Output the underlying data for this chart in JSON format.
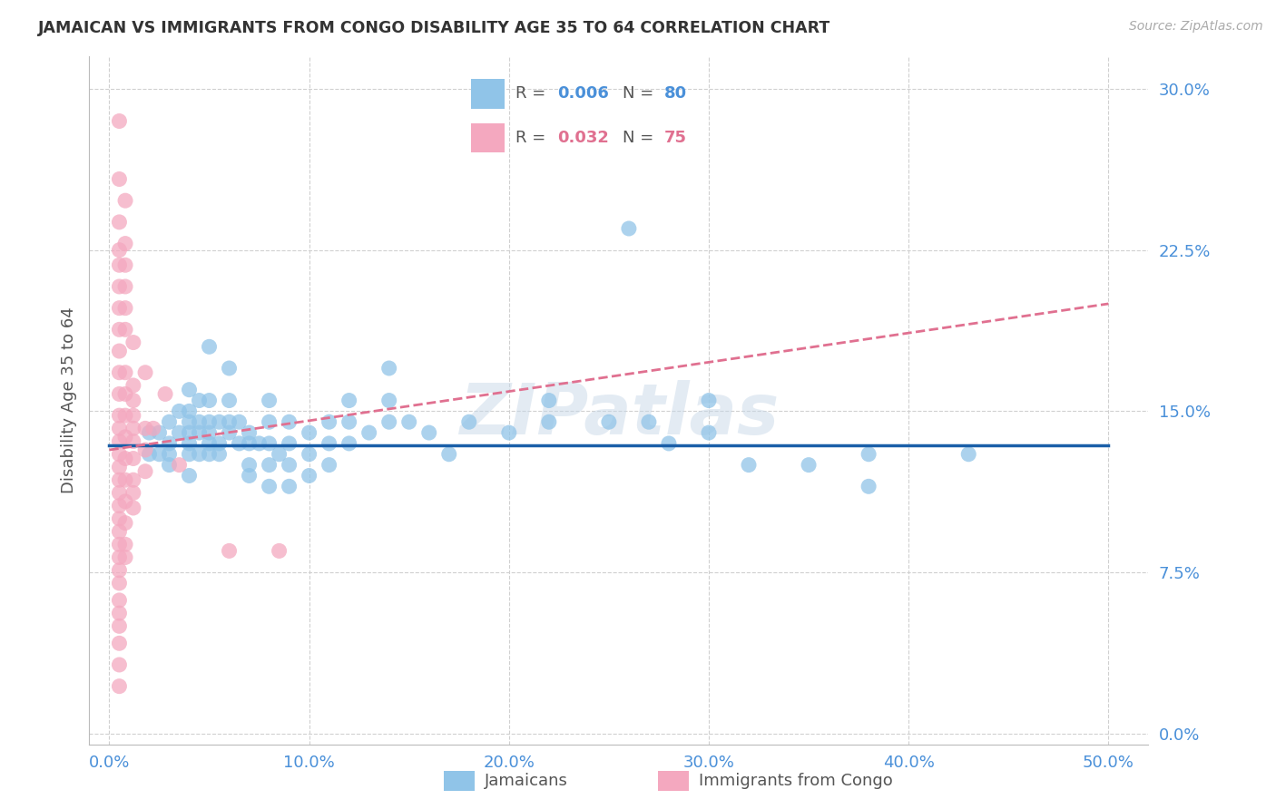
{
  "title": "JAMAICAN VS IMMIGRANTS FROM CONGO DISABILITY AGE 35 TO 64 CORRELATION CHART",
  "source": "Source: ZipAtlas.com",
  "xlabel_ticks": [
    "0.0%",
    "10.0%",
    "20.0%",
    "30.0%",
    "40.0%",
    "50.0%"
  ],
  "xlabel_vals": [
    0.0,
    0.1,
    0.2,
    0.3,
    0.4,
    0.5
  ],
  "ylabel_ticks": [
    "0.0%",
    "7.5%",
    "15.0%",
    "22.5%",
    "30.0%"
  ],
  "ylabel_vals": [
    0.0,
    0.075,
    0.15,
    0.225,
    0.3
  ],
  "xlim": [
    -0.01,
    0.52
  ],
  "ylim": [
    -0.005,
    0.315
  ],
  "ylabel": "Disability Age 35 to 64",
  "legend_blue_R": "0.006",
  "legend_blue_N": "80",
  "legend_pink_R": "0.032",
  "legend_pink_N": "75",
  "legend_label_blue": "Jamaicans",
  "legend_label_pink": "Immigrants from Congo",
  "watermark": "ZIPatlas",
  "blue_color": "#90c4e8",
  "pink_color": "#f4a8bf",
  "blue_line_color": "#1a5fa8",
  "pink_line_color": "#e07090",
  "tick_color": "#4a90d9",
  "blue_dots": [
    [
      0.02,
      0.14
    ],
    [
      0.02,
      0.13
    ],
    [
      0.025,
      0.14
    ],
    [
      0.025,
      0.13
    ],
    [
      0.03,
      0.145
    ],
    [
      0.03,
      0.135
    ],
    [
      0.03,
      0.13
    ],
    [
      0.03,
      0.125
    ],
    [
      0.035,
      0.15
    ],
    [
      0.035,
      0.14
    ],
    [
      0.04,
      0.16
    ],
    [
      0.04,
      0.15
    ],
    [
      0.04,
      0.145
    ],
    [
      0.04,
      0.14
    ],
    [
      0.04,
      0.135
    ],
    [
      0.04,
      0.13
    ],
    [
      0.04,
      0.12
    ],
    [
      0.045,
      0.155
    ],
    [
      0.045,
      0.145
    ],
    [
      0.045,
      0.14
    ],
    [
      0.045,
      0.13
    ],
    [
      0.05,
      0.18
    ],
    [
      0.05,
      0.155
    ],
    [
      0.05,
      0.145
    ],
    [
      0.05,
      0.14
    ],
    [
      0.05,
      0.135
    ],
    [
      0.05,
      0.13
    ],
    [
      0.055,
      0.145
    ],
    [
      0.055,
      0.135
    ],
    [
      0.055,
      0.13
    ],
    [
      0.06,
      0.17
    ],
    [
      0.06,
      0.155
    ],
    [
      0.06,
      0.145
    ],
    [
      0.06,
      0.14
    ],
    [
      0.065,
      0.145
    ],
    [
      0.065,
      0.135
    ],
    [
      0.07,
      0.14
    ],
    [
      0.07,
      0.135
    ],
    [
      0.07,
      0.125
    ],
    [
      0.07,
      0.12
    ],
    [
      0.075,
      0.135
    ],
    [
      0.08,
      0.155
    ],
    [
      0.08,
      0.145
    ],
    [
      0.08,
      0.135
    ],
    [
      0.08,
      0.125
    ],
    [
      0.08,
      0.115
    ],
    [
      0.085,
      0.13
    ],
    [
      0.09,
      0.145
    ],
    [
      0.09,
      0.135
    ],
    [
      0.09,
      0.125
    ],
    [
      0.09,
      0.115
    ],
    [
      0.1,
      0.14
    ],
    [
      0.1,
      0.13
    ],
    [
      0.1,
      0.12
    ],
    [
      0.11,
      0.145
    ],
    [
      0.11,
      0.135
    ],
    [
      0.11,
      0.125
    ],
    [
      0.12,
      0.155
    ],
    [
      0.12,
      0.145
    ],
    [
      0.12,
      0.135
    ],
    [
      0.13,
      0.14
    ],
    [
      0.14,
      0.17
    ],
    [
      0.14,
      0.155
    ],
    [
      0.14,
      0.145
    ],
    [
      0.15,
      0.145
    ],
    [
      0.16,
      0.14
    ],
    [
      0.17,
      0.13
    ],
    [
      0.18,
      0.145
    ],
    [
      0.2,
      0.14
    ],
    [
      0.22,
      0.155
    ],
    [
      0.22,
      0.145
    ],
    [
      0.25,
      0.145
    ],
    [
      0.26,
      0.235
    ],
    [
      0.27,
      0.145
    ],
    [
      0.28,
      0.135
    ],
    [
      0.3,
      0.155
    ],
    [
      0.3,
      0.14
    ],
    [
      0.32,
      0.125
    ],
    [
      0.35,
      0.125
    ],
    [
      0.38,
      0.115
    ],
    [
      0.38,
      0.13
    ],
    [
      0.43,
      0.13
    ]
  ],
  "pink_dots": [
    [
      0.005,
      0.285
    ],
    [
      0.005,
      0.258
    ],
    [
      0.005,
      0.238
    ],
    [
      0.005,
      0.225
    ],
    [
      0.005,
      0.218
    ],
    [
      0.005,
      0.208
    ],
    [
      0.005,
      0.198
    ],
    [
      0.005,
      0.188
    ],
    [
      0.005,
      0.178
    ],
    [
      0.005,
      0.168
    ],
    [
      0.005,
      0.158
    ],
    [
      0.005,
      0.148
    ],
    [
      0.005,
      0.142
    ],
    [
      0.005,
      0.136
    ],
    [
      0.005,
      0.13
    ],
    [
      0.005,
      0.124
    ],
    [
      0.005,
      0.118
    ],
    [
      0.005,
      0.112
    ],
    [
      0.005,
      0.106
    ],
    [
      0.005,
      0.1
    ],
    [
      0.005,
      0.094
    ],
    [
      0.005,
      0.088
    ],
    [
      0.005,
      0.082
    ],
    [
      0.005,
      0.076
    ],
    [
      0.005,
      0.07
    ],
    [
      0.005,
      0.062
    ],
    [
      0.005,
      0.056
    ],
    [
      0.005,
      0.05
    ],
    [
      0.005,
      0.042
    ],
    [
      0.005,
      0.032
    ],
    [
      0.005,
      0.022
    ],
    [
      0.008,
      0.248
    ],
    [
      0.008,
      0.228
    ],
    [
      0.008,
      0.218
    ],
    [
      0.008,
      0.208
    ],
    [
      0.008,
      0.198
    ],
    [
      0.008,
      0.188
    ],
    [
      0.008,
      0.168
    ],
    [
      0.008,
      0.158
    ],
    [
      0.008,
      0.148
    ],
    [
      0.008,
      0.138
    ],
    [
      0.008,
      0.128
    ],
    [
      0.008,
      0.118
    ],
    [
      0.008,
      0.108
    ],
    [
      0.008,
      0.098
    ],
    [
      0.008,
      0.088
    ],
    [
      0.008,
      0.082
    ],
    [
      0.012,
      0.182
    ],
    [
      0.012,
      0.162
    ],
    [
      0.012,
      0.155
    ],
    [
      0.012,
      0.148
    ],
    [
      0.012,
      0.142
    ],
    [
      0.012,
      0.136
    ],
    [
      0.012,
      0.128
    ],
    [
      0.012,
      0.118
    ],
    [
      0.012,
      0.112
    ],
    [
      0.012,
      0.105
    ],
    [
      0.018,
      0.168
    ],
    [
      0.018,
      0.142
    ],
    [
      0.018,
      0.132
    ],
    [
      0.018,
      0.122
    ],
    [
      0.022,
      0.142
    ],
    [
      0.028,
      0.158
    ],
    [
      0.035,
      0.125
    ],
    [
      0.06,
      0.085
    ],
    [
      0.085,
      0.085
    ]
  ],
  "blue_trend_x": [
    0.0,
    0.5
  ],
  "blue_trend_y": [
    0.134,
    0.134
  ],
  "pink_trend_x": [
    0.0,
    0.5
  ],
  "pink_trend_y": [
    0.132,
    0.2
  ],
  "grid_color": "#d0d0d0",
  "bg_color": "#ffffff"
}
